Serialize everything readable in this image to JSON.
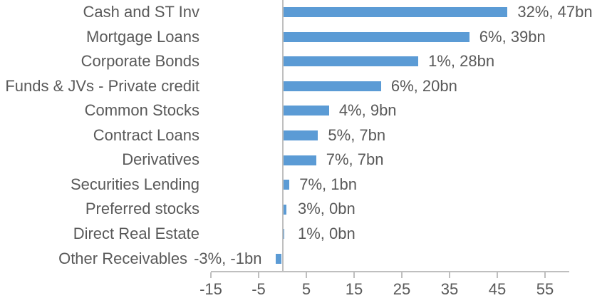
{
  "chart_data": {
    "type": "bar",
    "orientation": "horizontal",
    "title": "",
    "xlabel": "",
    "ylabel": "",
    "categories": [
      "Cash and ST Inv",
      "Mortgage Loans",
      "Corporate Bonds",
      "Funds & JVs - Private credit",
      "Common Stocks",
      "Contract Loans",
      "Derivatives",
      "Securities Lending",
      "Preferred stocks",
      "Direct Real Estate",
      "Other Receivables"
    ],
    "values_bn": [
      47,
      39,
      28,
      20,
      9,
      7,
      7,
      1,
      0,
      0,
      -1
    ],
    "percent_values": [
      32,
      6,
      1,
      6,
      4,
      5,
      7,
      7,
      3,
      1,
      -3
    ],
    "data_labels": [
      "32%, 47bn",
      "6%, 39bn",
      "1%, 28bn",
      "6%, 20bn",
      "4%, 9bn",
      "5%, 7bn",
      "7%, 7bn",
      "7%, 1bn",
      "3%, 0bn",
      "1%, 0bn",
      "-3%, -1bn"
    ],
    "bar_lengths_bn": [
      47,
      39,
      28.3,
      20.5,
      9.6,
      7.3,
      6.9,
      1.3,
      0.6,
      0.25,
      -1.2
    ],
    "x_ticks": [
      -15,
      -5,
      5,
      15,
      25,
      35,
      45,
      55
    ],
    "xlim": [
      -15,
      60
    ],
    "legend": "none",
    "grid": false,
    "colors": {
      "bar": "#5B9BD5",
      "axis": "#BFBFBF",
      "text": "#595959"
    }
  }
}
